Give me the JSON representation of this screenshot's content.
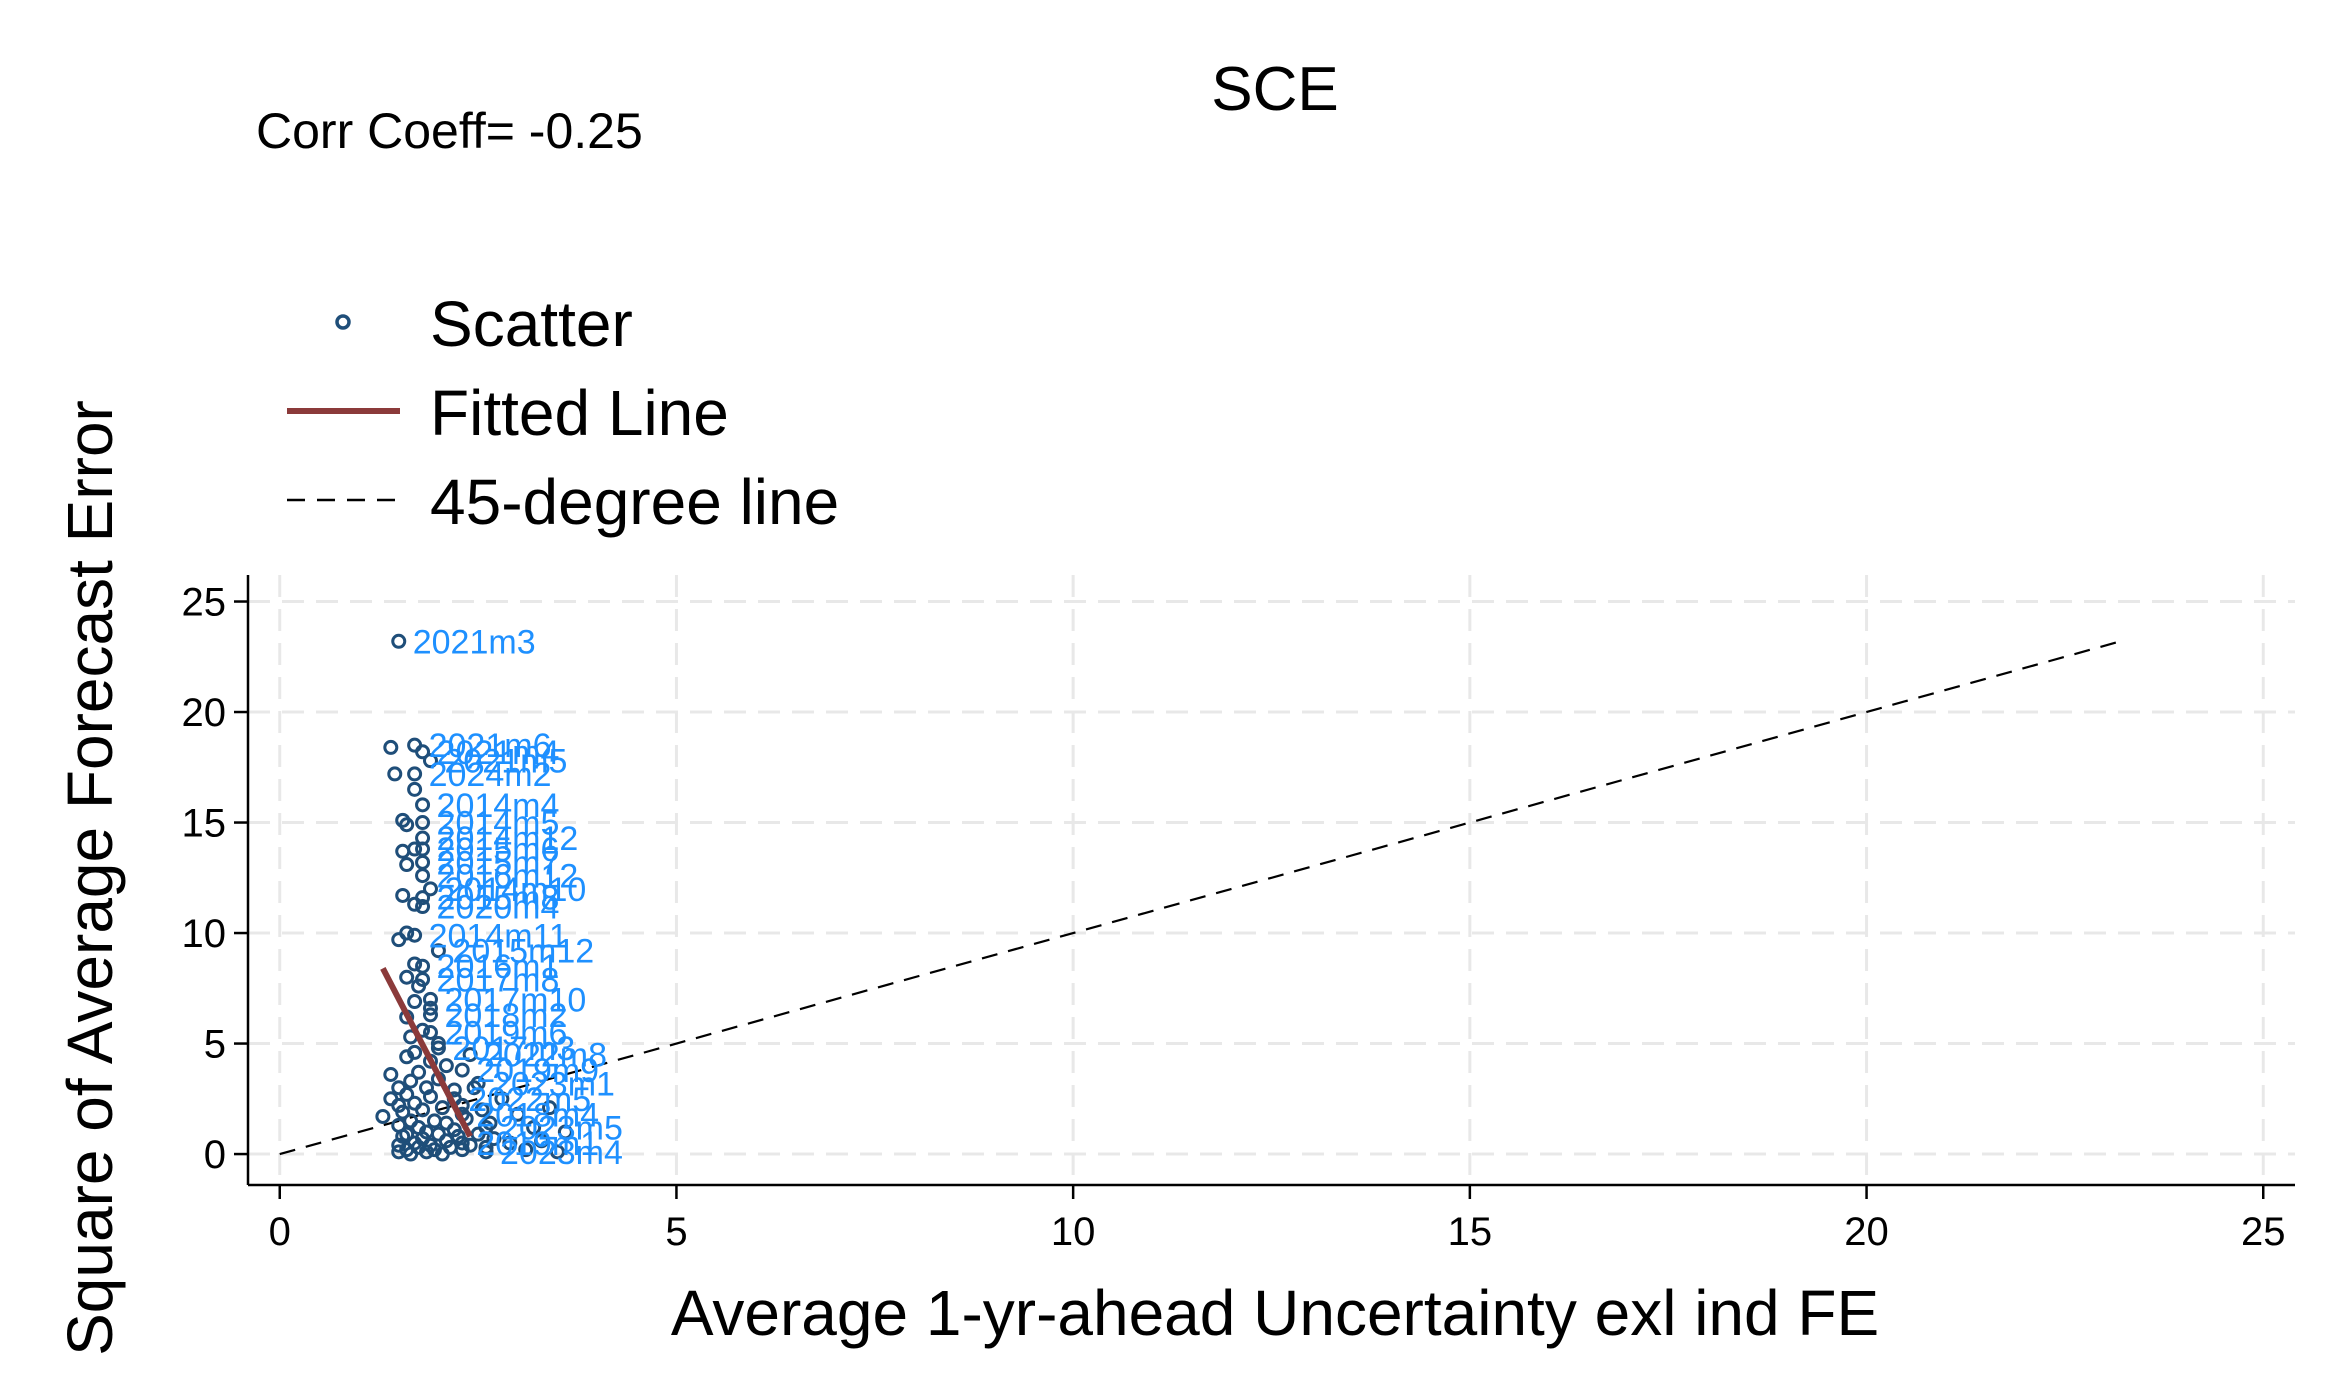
{
  "chart_data": {
    "type": "scatter",
    "title": "SCE",
    "annotation": "Corr Coeff= -0.25",
    "xlabel": "Average 1-yr-ahead Uncertainty exl ind FE",
    "ylabel": "Square of Average Forecast Error",
    "xlim": [
      -0.4,
      25.4
    ],
    "ylim": [
      -1.4,
      26.2
    ],
    "xticks": [
      0,
      5,
      10,
      15,
      20,
      25
    ],
    "yticks": [
      0,
      5,
      10,
      15,
      20,
      25
    ],
    "grid": true,
    "legend_position": "top-left",
    "legend": [
      {
        "name": "Scatter",
        "marker": "hollow-circle",
        "color": "#1f4e79"
      },
      {
        "name": "Fitted Line",
        "marker": "line",
        "color": "#8b3a3a"
      },
      {
        "name": "45-degree line",
        "marker": "dashed-line",
        "color": "#000000"
      }
    ],
    "series": [
      {
        "name": "Scatter",
        "labeled_points": [
          {
            "x": 1.5,
            "y": 23.2,
            "label": "2021m3"
          },
          {
            "x": 1.7,
            "y": 18.5,
            "label": "2021m6"
          },
          {
            "x": 1.8,
            "y": 18.2,
            "label": "2021m4"
          },
          {
            "x": 1.9,
            "y": 17.8,
            "label": "2021m5"
          },
          {
            "x": 1.7,
            "y": 17.2,
            "label": "2024m2"
          },
          {
            "x": 1.8,
            "y": 15.8,
            "label": "2014m4"
          },
          {
            "x": 1.8,
            "y": 15.0,
            "label": "2014m5"
          },
          {
            "x": 1.8,
            "y": 14.3,
            "label": "2014m12"
          },
          {
            "x": 1.8,
            "y": 13.8,
            "label": "2015m6"
          },
          {
            "x": 1.8,
            "y": 13.2,
            "label": "2015m7"
          },
          {
            "x": 1.8,
            "y": 12.6,
            "label": "2016m12"
          },
          {
            "x": 1.9,
            "y": 12.0,
            "label": "2014m10"
          },
          {
            "x": 1.8,
            "y": 11.6,
            "label": "2015m8"
          },
          {
            "x": 1.8,
            "y": 11.2,
            "label": "2020m4"
          },
          {
            "x": 1.7,
            "y": 9.9,
            "label": "2014m11"
          },
          {
            "x": 2.0,
            "y": 9.2,
            "label": "2015m12"
          },
          {
            "x": 1.8,
            "y": 8.5,
            "label": "2016m1"
          },
          {
            "x": 1.8,
            "y": 7.9,
            "label": "2017m8"
          },
          {
            "x": 1.9,
            "y": 7.0,
            "label": "2017m10"
          },
          {
            "x": 1.9,
            "y": 6.3,
            "label": "2018m2"
          },
          {
            "x": 1.9,
            "y": 5.5,
            "label": "2019m6"
          },
          {
            "x": 2.0,
            "y": 4.8,
            "label": "2017m3"
          },
          {
            "x": 2.4,
            "y": 4.5,
            "label": "2022m8"
          },
          {
            "x": 2.3,
            "y": 3.8,
            "label": "2019m9"
          },
          {
            "x": 2.5,
            "y": 3.2,
            "label": "2023m1"
          },
          {
            "x": 2.2,
            "y": 2.5,
            "label": "2022m5"
          },
          {
            "x": 2.3,
            "y": 1.8,
            "label": "2018m4"
          },
          {
            "x": 2.6,
            "y": 1.2,
            "label": "2023m5"
          },
          {
            "x": 2.3,
            "y": 0.5,
            "label": "2019m1"
          },
          {
            "x": 2.6,
            "y": 0.1,
            "label": "2023m4"
          }
        ],
        "points": [
          [
            1.3,
            1.7
          ],
          [
            1.4,
            2.5
          ],
          [
            1.4,
            3.6
          ],
          [
            1.4,
            18.4
          ],
          [
            1.45,
            17.2
          ],
          [
            1.5,
            0.1
          ],
          [
            1.5,
            0.4
          ],
          [
            1.5,
            1.3
          ],
          [
            1.5,
            2.2
          ],
          [
            1.5,
            3.0
          ],
          [
            1.5,
            9.7
          ],
          [
            1.55,
            0.8
          ],
          [
            1.55,
            1.9
          ],
          [
            1.55,
            11.7
          ],
          [
            1.55,
            13.7
          ],
          [
            1.55,
            15.1
          ],
          [
            1.6,
            0.2
          ],
          [
            1.6,
            0.9
          ],
          [
            1.6,
            2.7
          ],
          [
            1.6,
            4.4
          ],
          [
            1.6,
            6.2
          ],
          [
            1.6,
            8.0
          ],
          [
            1.6,
            10.0
          ],
          [
            1.6,
            13.1
          ],
          [
            1.6,
            14.9
          ],
          [
            1.65,
            0.0
          ],
          [
            1.65,
            1.5
          ],
          [
            1.65,
            3.3
          ],
          [
            1.65,
            5.3
          ],
          [
            1.7,
            0.5
          ],
          [
            1.7,
            2.3
          ],
          [
            1.7,
            4.6
          ],
          [
            1.7,
            6.9
          ],
          [
            1.7,
            8.6
          ],
          [
            1.7,
            11.3
          ],
          [
            1.7,
            13.8
          ],
          [
            1.7,
            16.5
          ],
          [
            1.75,
            0.3
          ],
          [
            1.75,
            1.2
          ],
          [
            1.75,
            3.7
          ],
          [
            1.75,
            7.6
          ],
          [
            1.8,
            0.7
          ],
          [
            1.8,
            2.0
          ],
          [
            1.8,
            5.6
          ],
          [
            1.85,
            0.1
          ],
          [
            1.85,
            1.0
          ],
          [
            1.85,
            3.0
          ],
          [
            1.9,
            0.4
          ],
          [
            1.9,
            2.6
          ],
          [
            1.9,
            4.2
          ],
          [
            1.9,
            6.6
          ],
          [
            1.95,
            0.2
          ],
          [
            1.95,
            1.5
          ],
          [
            2.0,
            0.9
          ],
          [
            2.0,
            3.4
          ],
          [
            2.0,
            5.0
          ],
          [
            2.05,
            0.0
          ],
          [
            2.05,
            2.1
          ],
          [
            2.1,
            0.6
          ],
          [
            2.1,
            1.4
          ],
          [
            2.1,
            4.0
          ],
          [
            2.15,
            0.3
          ],
          [
            2.2,
            1.1
          ],
          [
            2.2,
            2.9
          ],
          [
            2.25,
            0.8
          ],
          [
            2.3,
            0.2
          ],
          [
            2.3,
            2.2
          ],
          [
            2.35,
            1.6
          ],
          [
            2.4,
            0.4
          ],
          [
            2.45,
            3.0
          ],
          [
            2.5,
            0.9
          ],
          [
            2.55,
            2.0
          ],
          [
            2.6,
            0.3
          ],
          [
            2.65,
            1.4
          ],
          [
            2.7,
            0.7
          ],
          [
            2.8,
            2.5
          ],
          [
            2.9,
            0.5
          ],
          [
            3.0,
            1.8
          ],
          [
            3.1,
            0.2
          ],
          [
            3.2,
            1.2
          ],
          [
            3.3,
            0.6
          ],
          [
            3.4,
            2.1
          ],
          [
            3.5,
            0.1
          ],
          [
            3.6,
            1.0
          ]
        ]
      },
      {
        "name": "Fitted Line",
        "x": [
          1.3,
          2.4
        ],
        "y": [
          8.4,
          0.8
        ]
      },
      {
        "name": "45-degree line",
        "x": [
          0,
          23.2
        ],
        "y": [
          0,
          23.2
        ]
      }
    ]
  }
}
